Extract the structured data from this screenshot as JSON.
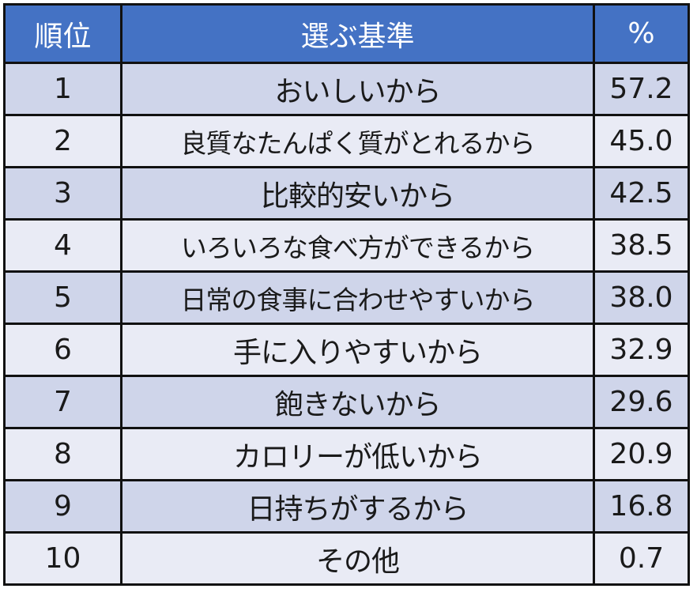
{
  "table": {
    "headers": {
      "rank": "順位",
      "criteria": "選ぶ基準",
      "percent": "%"
    },
    "rows": [
      {
        "rank": "1",
        "criteria": "おいしいから",
        "percent": "57.2"
      },
      {
        "rank": "2",
        "criteria": "良質なたんぱく質がとれるから",
        "percent": "45.0"
      },
      {
        "rank": "3",
        "criteria": "比較的安いから",
        "percent": "42.5"
      },
      {
        "rank": "4",
        "criteria": "いろいろな食べ方ができるから",
        "percent": "38.5"
      },
      {
        "rank": "5",
        "criteria": "日常の食事に合わせやすいから",
        "percent": "38.0"
      },
      {
        "rank": "6",
        "criteria": "手に入りやすいから",
        "percent": "32.9"
      },
      {
        "rank": "7",
        "criteria": "飽きないから",
        "percent": "29.6"
      },
      {
        "rank": "8",
        "criteria": "カロリーが低いから",
        "percent": "20.9"
      },
      {
        "rank": "9",
        "criteria": "日持ちがするから",
        "percent": "16.8"
      },
      {
        "rank": "10",
        "criteria": "その他",
        "percent": "0.7"
      }
    ]
  },
  "colors": {
    "header_bg": "#4472c4",
    "header_text": "#ffffff",
    "row_odd_bg": "#cfd5ea",
    "row_even_bg": "#e9ebf5",
    "border": "#111111"
  }
}
